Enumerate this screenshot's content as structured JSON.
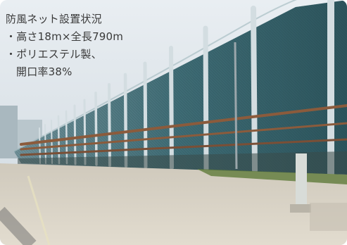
{
  "caption": {
    "title": "防風ネット設置状況",
    "line1": "・高さ18m×全長790m",
    "line2": "・ポリエステル製、",
    "line3": "開口率38%"
  },
  "colors": {
    "sky": "#e6edf2",
    "net": "#3f6f78",
    "net_dark": "#2c4f56",
    "post": "#c9d3d8",
    "pipe": "#8a5a3a",
    "ground": "#d9d2c4"
  }
}
